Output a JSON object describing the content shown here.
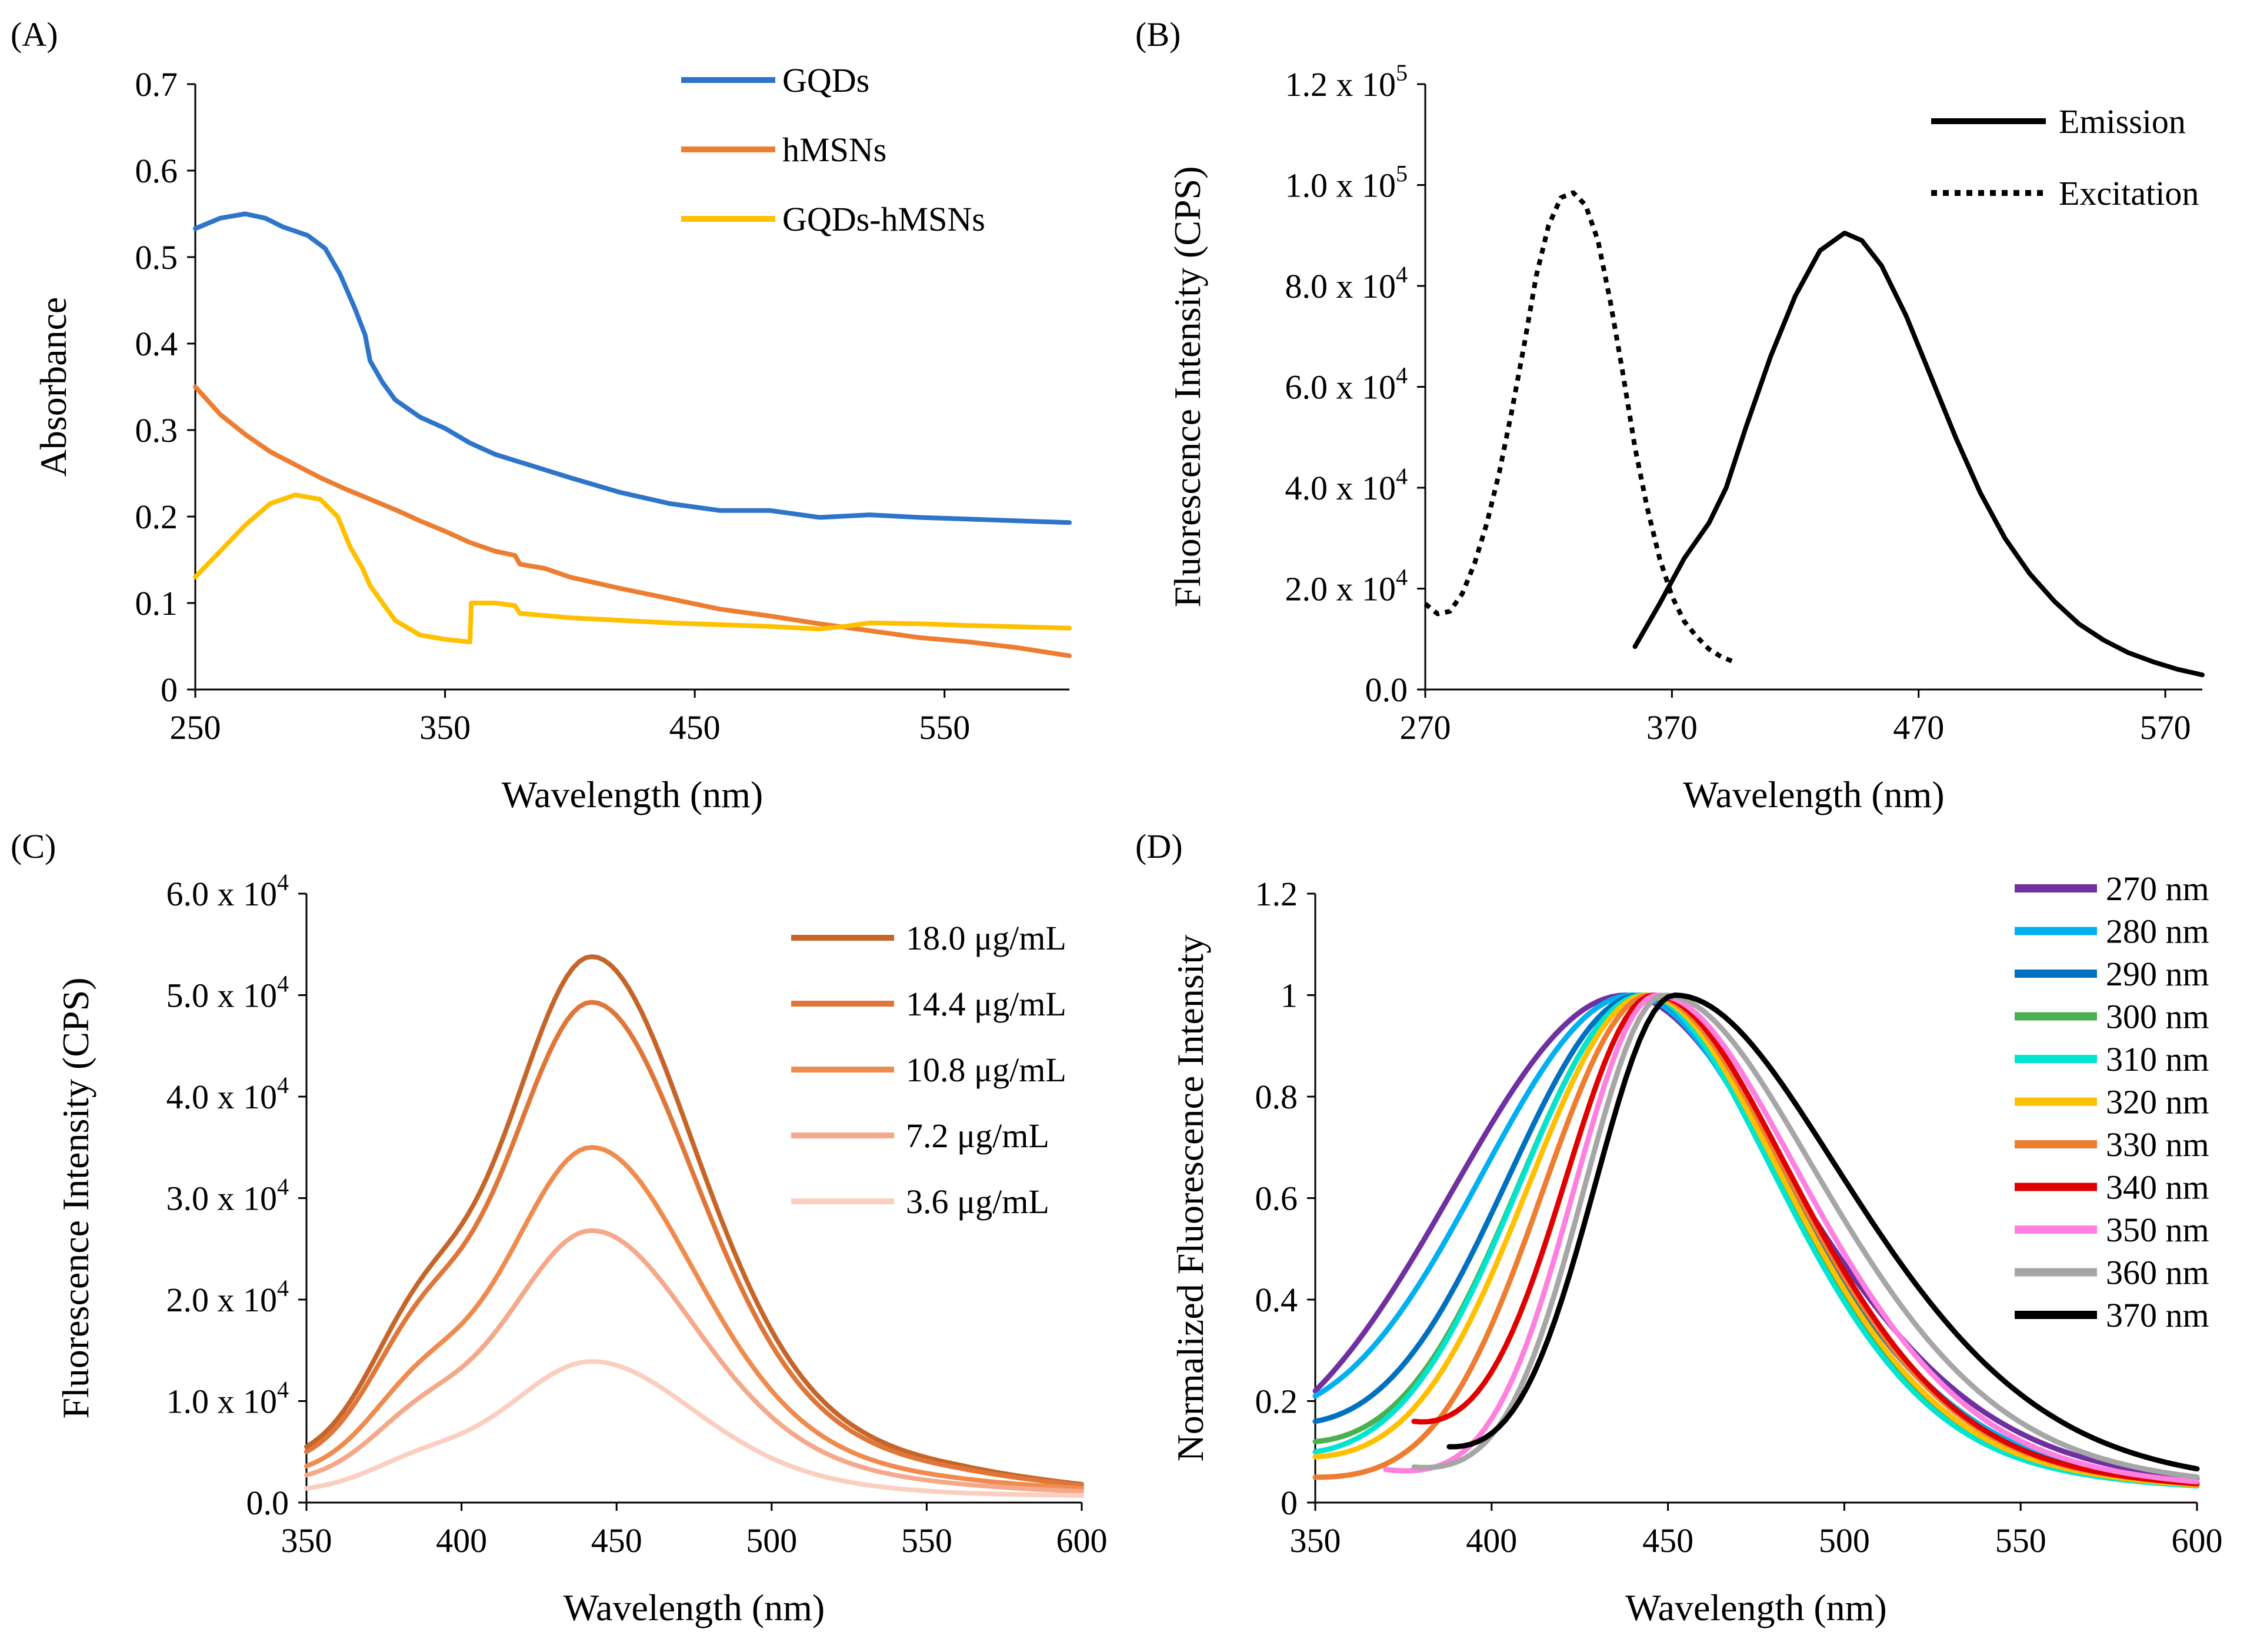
{
  "chart_data": [
    {
      "panel": "(A)",
      "type": "line",
      "xlabel": "Wavelength (nm)",
      "ylabel": "Absorbance",
      "xlim": [
        250,
        600
      ],
      "ylim": [
        0,
        0.7
      ],
      "xticks": [
        250,
        350,
        450,
        550
      ],
      "xtick_labels": [
        "250",
        "350",
        "450",
        "550"
      ],
      "yticks": [
        0,
        0.1,
        0.2,
        0.3,
        0.4,
        0.5,
        0.6,
        0.7
      ],
      "ytick_labels": [
        "0",
        "0.1",
        "0.2",
        "0.3",
        "0.4",
        "0.5",
        "0.6",
        "0.7"
      ],
      "legend_position": "top-right",
      "series": [
        {
          "name": "GQDs",
          "color": "#2e75c9",
          "dash": "solid",
          "points": [
            [
              250,
              0.533
            ],
            [
              260,
              0.545
            ],
            [
              270,
              0.55
            ],
            [
              278,
              0.545
            ],
            [
              285,
              0.535
            ],
            [
              295,
              0.525
            ],
            [
              302,
              0.51
            ],
            [
              308,
              0.48
            ],
            [
              314,
              0.44
            ],
            [
              318,
              0.41
            ],
            [
              320,
              0.38
            ],
            [
              325,
              0.355
            ],
            [
              330,
              0.335
            ],
            [
              340,
              0.315
            ],
            [
              350,
              0.302
            ],
            [
              360,
              0.285
            ],
            [
              370,
              0.272
            ],
            [
              380,
              0.263
            ],
            [
              400,
              0.245
            ],
            [
              420,
              0.228
            ],
            [
              440,
              0.215
            ],
            [
              460,
              0.207
            ],
            [
              480,
              0.207
            ],
            [
              490,
              0.203
            ],
            [
              500,
              0.199
            ],
            [
              520,
              0.202
            ],
            [
              540,
              0.199
            ],
            [
              560,
              0.197
            ],
            [
              600,
              0.193
            ]
          ]
        },
        {
          "name": "hMSNs",
          "color": "#ed7d31",
          "dash": "solid",
          "points": [
            [
              250,
              0.35
            ],
            [
              260,
              0.318
            ],
            [
              270,
              0.295
            ],
            [
              280,
              0.275
            ],
            [
              290,
              0.26
            ],
            [
              300,
              0.245
            ],
            [
              310,
              0.232
            ],
            [
              320,
              0.22
            ],
            [
              330,
              0.208
            ],
            [
              340,
              0.195
            ],
            [
              350,
              0.183
            ],
            [
              360,
              0.17
            ],
            [
              370,
              0.16
            ],
            [
              378,
              0.155
            ],
            [
              380,
              0.145
            ],
            [
              390,
              0.14
            ],
            [
              400,
              0.13
            ],
            [
              420,
              0.117
            ],
            [
              440,
              0.105
            ],
            [
              460,
              0.093
            ],
            [
              480,
              0.085
            ],
            [
              500,
              0.076
            ],
            [
              520,
              0.068
            ],
            [
              540,
              0.06
            ],
            [
              560,
              0.055
            ],
            [
              580,
              0.048
            ],
            [
              600,
              0.039
            ]
          ]
        },
        {
          "name": "GQDs-hMSNs",
          "color": "#ffc000",
          "dash": "solid",
          "points": [
            [
              250,
              0.13
            ],
            [
              260,
              0.16
            ],
            [
              270,
              0.19
            ],
            [
              280,
              0.215
            ],
            [
              290,
              0.225
            ],
            [
              300,
              0.22
            ],
            [
              307,
              0.2
            ],
            [
              312,
              0.165
            ],
            [
              317,
              0.14
            ],
            [
              320,
              0.12
            ],
            [
              330,
              0.08
            ],
            [
              340,
              0.063
            ],
            [
              350,
              0.058
            ],
            [
              360,
              0.055
            ],
            [
              360.5,
              0.1
            ],
            [
              370,
              0.1
            ],
            [
              378,
              0.097
            ],
            [
              380,
              0.088
            ],
            [
              400,
              0.083
            ],
            [
              420,
              0.08
            ],
            [
              440,
              0.077
            ],
            [
              460,
              0.075
            ],
            [
              480,
              0.073
            ],
            [
              500,
              0.07
            ],
            [
              510,
              0.073
            ],
            [
              520,
              0.077
            ],
            [
              540,
              0.076
            ],
            [
              560,
              0.074
            ],
            [
              600,
              0.071
            ]
          ]
        }
      ]
    },
    {
      "panel": "(B)",
      "type": "line",
      "xlabel": "Wavelength (nm)",
      "ylabel": "Fluorescence Intensity (CPS)",
      "xlim": [
        270,
        585
      ],
      "ylim": [
        0,
        120000
      ],
      "xticks": [
        270,
        370,
        470,
        570
      ],
      "xtick_labels": [
        "270",
        "370",
        "470",
        "570"
      ],
      "yticks": [
        0,
        20000,
        40000,
        60000,
        80000,
        100000,
        120000
      ],
      "ytick_labels": [
        {
          "base": "0.0",
          "exp": ""
        },
        {
          "base": "2.0 x 10",
          "exp": "4"
        },
        {
          "base": "4.0 x 10",
          "exp": "4"
        },
        {
          "base": "6.0 x 10",
          "exp": "4"
        },
        {
          "base": "8.0 x 10",
          "exp": "4"
        },
        {
          "base": "1.0 x 10",
          "exp": "5"
        },
        {
          "base": "1.2 x 10",
          "exp": "5"
        }
      ],
      "legend_position": "top-right",
      "series": [
        {
          "name": "Emission",
          "color": "#000000",
          "dash": "solid",
          "points": [
            [
              355,
              8500
            ],
            [
              365,
              17000
            ],
            [
              375,
              26000
            ],
            [
              385,
              33000
            ],
            [
              392,
              40000
            ],
            [
              400,
              52000
            ],
            [
              410,
              66000
            ],
            [
              420,
              78000
            ],
            [
              430,
              87000
            ],
            [
              440,
              90500
            ],
            [
              447,
              89000
            ],
            [
              455,
              84000
            ],
            [
              465,
              74000
            ],
            [
              475,
              62000
            ],
            [
              485,
              50000
            ],
            [
              495,
              39000
            ],
            [
              505,
              30000
            ],
            [
              515,
              23000
            ],
            [
              525,
              17500
            ],
            [
              535,
              13000
            ],
            [
              545,
              9800
            ],
            [
              555,
              7300
            ],
            [
              565,
              5500
            ],
            [
              575,
              4000
            ],
            [
              585,
              2900
            ]
          ]
        },
        {
          "name": "Excitation",
          "color": "#000000",
          "dash": "dotted",
          "points": [
            [
              270,
              17000
            ],
            [
              275,
              15000
            ],
            [
              280,
              15500
            ],
            [
              285,
              19000
            ],
            [
              290,
              25000
            ],
            [
              295,
              33000
            ],
            [
              300,
              43000
            ],
            [
              305,
              55000
            ],
            [
              310,
              68000
            ],
            [
              315,
              82000
            ],
            [
              320,
              92000
            ],
            [
              325,
              97500
            ],
            [
              330,
              98500
            ],
            [
              335,
              96000
            ],
            [
              340,
              89000
            ],
            [
              345,
              77000
            ],
            [
              350,
              63000
            ],
            [
              355,
              48000
            ],
            [
              360,
              36000
            ],
            [
              365,
              26000
            ],
            [
              370,
              18500
            ],
            [
              375,
              13500
            ],
            [
              380,
              10500
            ],
            [
              385,
              8000
            ],
            [
              390,
              6500
            ],
            [
              395,
              5500
            ]
          ]
        }
      ]
    },
    {
      "panel": "(C)",
      "type": "line",
      "xlabel": "Wavelength (nm)",
      "ylabel": "Fluorescence Intensity (CPS)",
      "xlim": [
        350,
        600
      ],
      "ylim": [
        0,
        60000
      ],
      "xticks": [
        350,
        400,
        450,
        500,
        550,
        600
      ],
      "xtick_labels": [
        "350",
        "400",
        "450",
        "500",
        "550",
        "600"
      ],
      "yticks": [
        0,
        10000,
        20000,
        30000,
        40000,
        50000,
        60000
      ],
      "ytick_labels": [
        {
          "base": "0.0",
          "exp": ""
        },
        {
          "base": "1.0 x 10",
          "exp": "4"
        },
        {
          "base": "2.0 x 10",
          "exp": "4"
        },
        {
          "base": "3.0 x 10",
          "exp": "4"
        },
        {
          "base": "4.0 x 10",
          "exp": "4"
        },
        {
          "base": "5.0 x 10",
          "exp": "4"
        },
        {
          "base": "6.0 x 10",
          "exp": "4"
        }
      ],
      "legend_position": "top-right",
      "series": [
        {
          "name": "18.0 μg/mL",
          "color": "#c5652a",
          "dash": "solid",
          "peak": 53800,
          "start": 5500,
          "end": 1800,
          "shoulder": 0.16
        },
        {
          "name": "14.4 μg/mL",
          "color": "#e0773a",
          "dash": "solid",
          "peak": 49300,
          "start": 5000,
          "end": 1700,
          "shoulder": 0.16
        },
        {
          "name": "10.8 μg/mL",
          "color": "#f08b4e",
          "dash": "solid",
          "peak": 35000,
          "start": 3600,
          "end": 1400,
          "shoulder": 0.15
        },
        {
          "name": "7.2 μg/mL",
          "color": "#f5a98a",
          "dash": "solid",
          "peak": 26800,
          "start": 2700,
          "end": 1100,
          "shoulder": 0.14
        },
        {
          "name": "3.6 μg/mL",
          "color": "#fbcfc0",
          "dash": "solid",
          "peak": 13900,
          "start": 1400,
          "end": 700,
          "shoulder": 0.13
        }
      ]
    },
    {
      "panel": "(D)",
      "type": "line",
      "xlabel": "Wavelength (nm)",
      "ylabel": "Normalized Fluorescence Intensity",
      "xlim": [
        350,
        600
      ],
      "ylim": [
        0,
        1.2
      ],
      "xticks": [
        350,
        400,
        450,
        500,
        550,
        600
      ],
      "xtick_labels": [
        "350",
        "400",
        "450",
        "500",
        "550",
        "600"
      ],
      "yticks": [
        0,
        0.2,
        0.4,
        0.6,
        0.8,
        1.0,
        1.2
      ],
      "ytick_labels": [
        "0",
        "0.2",
        "0.4",
        "0.6",
        "0.8",
        "1",
        "1.2"
      ],
      "legend_position": "top-right",
      "series": [
        {
          "name": "270 nm",
          "color": "#7030a0",
          "dash": "solid",
          "start_x": 350,
          "peak_x": 438,
          "width_left": 58,
          "width_right": 60,
          "start_y": 0.22
        },
        {
          "name": "280 nm",
          "color": "#00b0f0",
          "dash": "solid",
          "start_x": 350,
          "peak_x": 440,
          "width_left": 52,
          "width_right": 55,
          "start_y": 0.21
        },
        {
          "name": "290 nm",
          "color": "#0070c0",
          "dash": "solid",
          "start_x": 350,
          "peak_x": 442,
          "width_left": 45,
          "width_right": 53,
          "start_y": 0.16
        },
        {
          "name": "300 nm",
          "color": "#4caf50",
          "dash": "solid",
          "start_x": 350,
          "peak_x": 443,
          "width_left": 42,
          "width_right": 50,
          "start_y": 0.12
        },
        {
          "name": "310 nm",
          "color": "#00e5d0",
          "dash": "solid",
          "start_x": 350,
          "peak_x": 443,
          "width_left": 42,
          "width_right": 49,
          "start_y": 0.1
        },
        {
          "name": "320 nm",
          "color": "#ffc000",
          "dash": "solid",
          "start_x": 350,
          "peak_x": 444,
          "width_left": 40,
          "width_right": 50,
          "start_y": 0.09
        },
        {
          "name": "330 nm",
          "color": "#ed7d31",
          "dash": "solid",
          "start_x": 350,
          "peak_x": 445,
          "width_left": 36,
          "width_right": 51,
          "start_y": 0.05
        },
        {
          "name": "340 nm",
          "color": "#e00000",
          "dash": "solid",
          "start_x": 378,
          "peak_x": 446,
          "width_left": 30,
          "width_right": 51,
          "start_y": 0.16
        },
        {
          "name": "350 nm",
          "color": "#ff80e0",
          "dash": "solid",
          "start_x": 370,
          "peak_x": 447,
          "width_left": 28,
          "width_right": 53,
          "start_y": 0.065
        },
        {
          "name": "360 nm",
          "color": "#a6a6a6",
          "dash": "solid",
          "start_x": 378,
          "peak_x": 449,
          "width_left": 27,
          "width_right": 57,
          "start_y": 0.07
        },
        {
          "name": "370 nm",
          "color": "#000000",
          "dash": "solid",
          "start_x": 388,
          "peak_x": 452,
          "width_left": 27,
          "width_right": 62,
          "start_y": 0.11
        }
      ]
    }
  ]
}
